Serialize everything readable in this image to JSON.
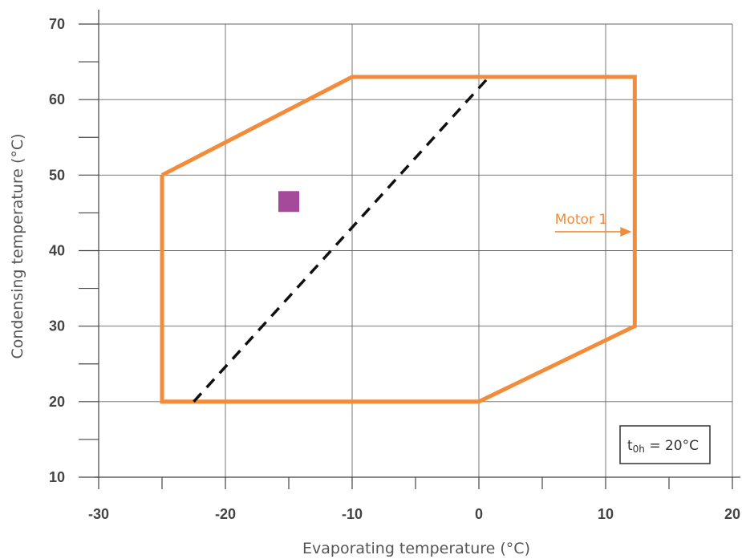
{
  "chart_data": {
    "type": "line",
    "xlabel": "Evaporating temperature (°C)",
    "ylabel": "Condensing temperature (°C)",
    "xlim": [
      -30,
      20
    ],
    "ylim": [
      10,
      70
    ],
    "x_ticks": [
      -30,
      -20,
      -10,
      0,
      10,
      20
    ],
    "x_minor_ticks": [
      -25,
      -15,
      -5,
      5,
      15
    ],
    "y_ticks": [
      10,
      20,
      30,
      40,
      50,
      60,
      70
    ],
    "y_minor_ticks": [
      15,
      25,
      35,
      45,
      55,
      65
    ],
    "grid": true,
    "colors": {
      "envelope": "#f28c3a",
      "dashed": "#111111",
      "marker": "#a5499b",
      "grid": "#666666",
      "axis": "#444444"
    },
    "series": [
      {
        "name": "Motor 1",
        "kind": "envelope",
        "x": [
          -25,
          -10,
          12.3,
          12.3,
          0,
          -25,
          -25
        ],
        "y": [
          50,
          63,
          63,
          30,
          20,
          20,
          50
        ]
      },
      {
        "kind": "dashed",
        "x": [
          -22.5,
          0.8
        ],
        "y": [
          20,
          63
        ]
      }
    ],
    "marker": {
      "x": -15,
      "y": 46.5,
      "shape": "square"
    },
    "annotations": [
      {
        "text": "Motor 1",
        "x_from": 6,
        "x_to": 12.3,
        "y": 42.5,
        "arrow": true
      }
    ],
    "condition_box": {
      "symbol": "t",
      "subscript": "0h",
      "text": " = 20°C",
      "position": "bottom-right"
    }
  }
}
